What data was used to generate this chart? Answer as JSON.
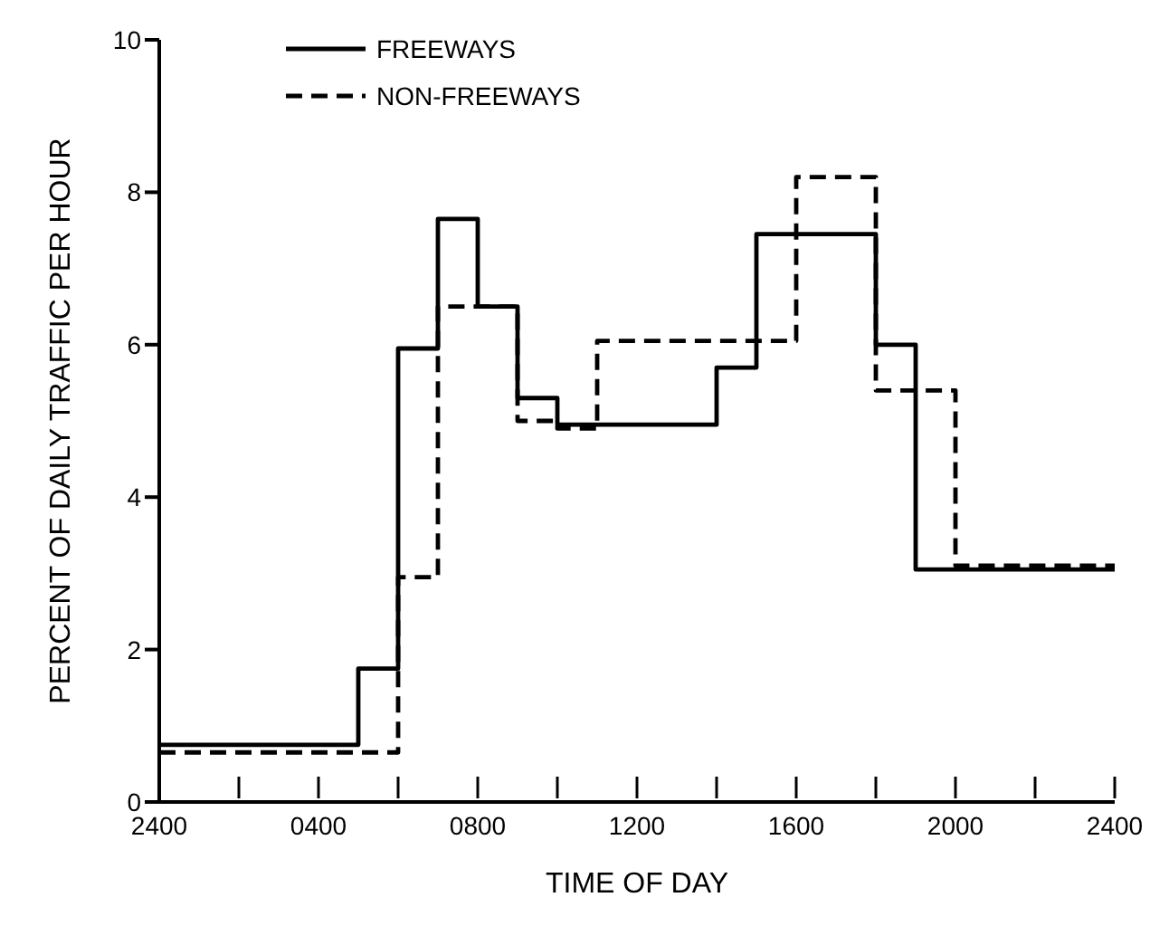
{
  "chart_data": {
    "type": "step",
    "xlabel": "TIME OF DAY",
    "ylabel": "PERCENT OF DAILY TRAFFIC PER HOUR",
    "categories": [
      "2400",
      null,
      null,
      null,
      "0400",
      null,
      null,
      null,
      "0800",
      null,
      null,
      null,
      "1200",
      null,
      null,
      null,
      "1600",
      null,
      null,
      null,
      "2000",
      null,
      null,
      null,
      "2400"
    ],
    "series": [
      {
        "name": "FREEWAYS",
        "color": "#000000",
        "line_style": "solid",
        "values": [
          0.75,
          0.75,
          0.75,
          0.75,
          0.75,
          1.75,
          5.95,
          7.65,
          6.5,
          5.3,
          4.95,
          4.95,
          4.95,
          4.95,
          5.7,
          7.45,
          7.45,
          7.45,
          6.0,
          3.05,
          3.05,
          3.05,
          3.05,
          3.05,
          3.05
        ]
      },
      {
        "name": "NON-FREEWAYS",
        "color": "#000000",
        "line_style": "dashed",
        "values": [
          0.65,
          0.65,
          0.65,
          0.65,
          0.65,
          0.65,
          2.95,
          6.5,
          6.5,
          5.0,
          4.9,
          6.05,
          6.05,
          6.05,
          6.05,
          6.05,
          8.2,
          8.2,
          5.4,
          5.4,
          3.1,
          3.1,
          3.1,
          3.1,
          3.1
        ]
      }
    ],
    "ylim": [
      0,
      10
    ],
    "yticks": [
      0,
      2,
      4,
      6,
      8,
      10
    ],
    "grid": false,
    "legend": "top left",
    "marker": "none"
  }
}
